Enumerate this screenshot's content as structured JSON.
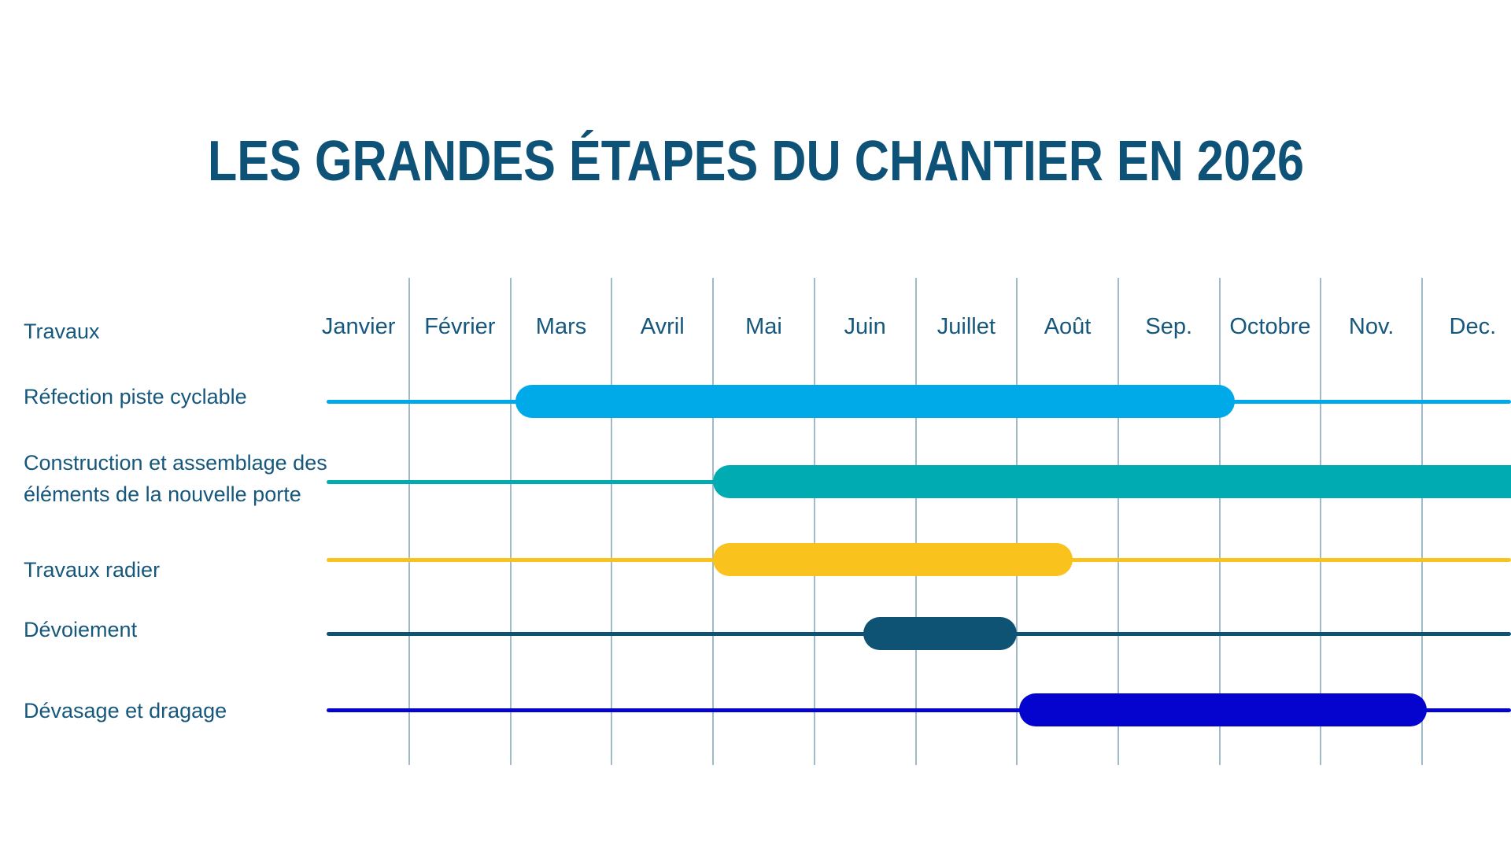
{
  "page": {
    "title": "LES GRANDES ÉTAPES DU CHANTIER EN 2026"
  },
  "chart_data": {
    "type": "gantt",
    "title": "LES GRANDES ÉTAPES DU CHANTIER EN 2026",
    "title_color": "#0E5377",
    "text_color": "#16577D",
    "gridline_color": "#9FBAC9",
    "row_header": "Travaux",
    "months": [
      "Janvier",
      "Février",
      "Mars",
      "Avril",
      "Mai",
      "Juin",
      "Juillet",
      "Août",
      "Sep.",
      "Octobre",
      "Nov.",
      "Dec."
    ],
    "x_unit": "month index: 0 = début janvier, 12 = fin décembre",
    "x_range": [
      0,
      12
    ],
    "grid": "vertical month separators only",
    "legend": "none",
    "tasks": [
      {
        "label_lines": [
          "Réfection piste cyclable"
        ],
        "start": 2.05,
        "end": 9.15,
        "period": "début mars → fin septembre",
        "color": "#00A9E8"
      },
      {
        "label_lines": [
          "Construction et assemblage des",
          "éléments de la nouvelle porte"
        ],
        "start": 4.0,
        "end": 12.1,
        "period": "début mai → au-delà de décembre",
        "color": "#00ACB1"
      },
      {
        "label_lines": [
          "Travaux radier"
        ],
        "start": 4.0,
        "end": 7.55,
        "period": "début mai → mi-août",
        "color": "#F9C21D"
      },
      {
        "label_lines": [
          "Dévoiement"
        ],
        "start": 5.48,
        "end": 7.0,
        "period": "mi-juin → fin juillet",
        "color": "#0E5374"
      },
      {
        "label_lines": [
          "Dévasage et dragage"
        ],
        "start": 7.02,
        "end": 11.05,
        "period": "début août → fin novembre",
        "color": "#0404CE"
      }
    ]
  }
}
